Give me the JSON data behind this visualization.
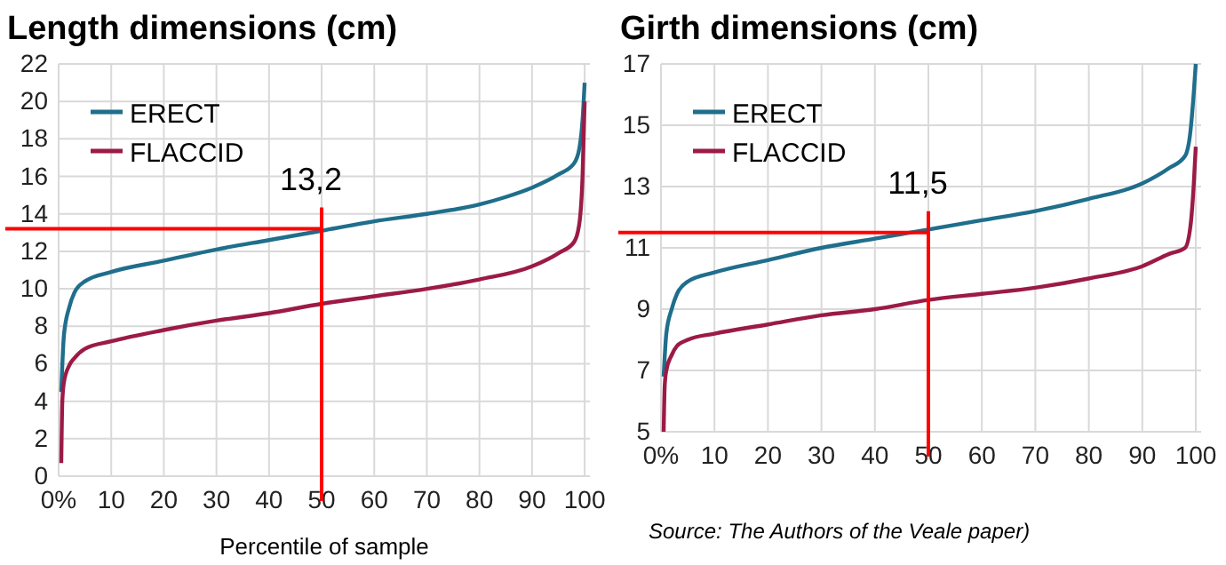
{
  "chart_data": [
    {
      "type": "line",
      "title": "Length dimensions (cm)",
      "xlabel": "Percentile of sample",
      "xlim": [
        0,
        101
      ],
      "xticks": [
        {
          "value": 0,
          "label": "0%"
        },
        10,
        20,
        30,
        40,
        50,
        60,
        70,
        80,
        90,
        100
      ],
      "ylim": [
        0,
        22
      ],
      "yticks": [
        0,
        2,
        4,
        6,
        8,
        10,
        12,
        14,
        16,
        18,
        20,
        22
      ],
      "grid": true,
      "legend": "top left",
      "marker": "none",
      "series": [
        {
          "name": "ERECT",
          "color": "#1f6e8c",
          "x": [
            0.5,
            1,
            2,
            3,
            5,
            10,
            20,
            30,
            40,
            50,
            60,
            70,
            80,
            85,
            90,
            95,
            98,
            99,
            99.6,
            100
          ],
          "values": [
            4.5,
            7.5,
            9,
            9.8,
            10.4,
            10.9,
            11.5,
            12.1,
            12.6,
            13.1,
            13.6,
            14,
            14.5,
            14.9,
            15.4,
            16.1,
            16.7,
            17.5,
            19,
            21
          ]
        },
        {
          "name": "FLACCID",
          "color": "#9b1b45",
          "x": [
            0.5,
            0.7,
            1,
            2,
            3,
            5,
            10,
            20,
            30,
            40,
            50,
            60,
            70,
            80,
            90,
            95,
            98,
            99,
            99.6,
            100
          ],
          "values": [
            0.7,
            4,
            5,
            5.9,
            6.3,
            6.8,
            7.2,
            7.8,
            8.3,
            8.7,
            9.2,
            9.6,
            10,
            10.5,
            11.2,
            11.9,
            12.5,
            13.5,
            16,
            20
          ]
        }
      ],
      "ref_lines": [
        {
          "axis": "y",
          "value": 13.2,
          "color": "#ff0000"
        },
        {
          "axis": "x",
          "value": 50,
          "color": "#ff0000"
        }
      ],
      "annotations": [
        {
          "text": "13,2",
          "x": 50,
          "y": 13.2
        }
      ]
    },
    {
      "type": "line",
      "title": "Girth dimensions (cm)",
      "xlim": [
        0,
        101
      ],
      "xticks": [
        {
          "value": 0,
          "label": "0%"
        },
        10,
        20,
        30,
        40,
        50,
        60,
        70,
        80,
        90,
        100
      ],
      "ylim": [
        5,
        17
      ],
      "yticks": [
        5,
        7,
        9,
        11,
        13,
        15,
        17
      ],
      "grid": true,
      "legend": "top left",
      "marker": "none",
      "series": [
        {
          "name": "ERECT",
          "color": "#1f6e8c",
          "x": [
            0.5,
            1,
            2,
            3,
            5,
            10,
            20,
            30,
            40,
            50,
            60,
            70,
            80,
            90,
            95,
            98,
            99,
            99.6,
            100
          ],
          "values": [
            6.8,
            8.2,
            9,
            9.5,
            9.9,
            10.2,
            10.6,
            11,
            11.3,
            11.6,
            11.9,
            12.2,
            12.6,
            13.1,
            13.6,
            14,
            14.8,
            16,
            17
          ]
        },
        {
          "name": "FLACCID",
          "color": "#9b1b45",
          "x": [
            0.5,
            0.7,
            1,
            2,
            3,
            5,
            10,
            20,
            30,
            40,
            50,
            60,
            70,
            80,
            90,
            95,
            98,
            99,
            99.6,
            100
          ],
          "values": [
            5,
            6.5,
            7,
            7.5,
            7.8,
            8,
            8.2,
            8.5,
            8.8,
            9,
            9.3,
            9.5,
            9.7,
            10,
            10.4,
            10.8,
            11,
            11.7,
            13,
            14.3
          ]
        }
      ],
      "ref_lines": [
        {
          "axis": "y",
          "value": 11.5,
          "color": "#ff0000"
        },
        {
          "axis": "x",
          "value": 50,
          "color": "#ff0000"
        }
      ],
      "annotations": [
        {
          "text": "11,5",
          "x": 50,
          "y": 11.5
        },
        "Source: The Authors of the Veale paper)"
      ]
    }
  ]
}
